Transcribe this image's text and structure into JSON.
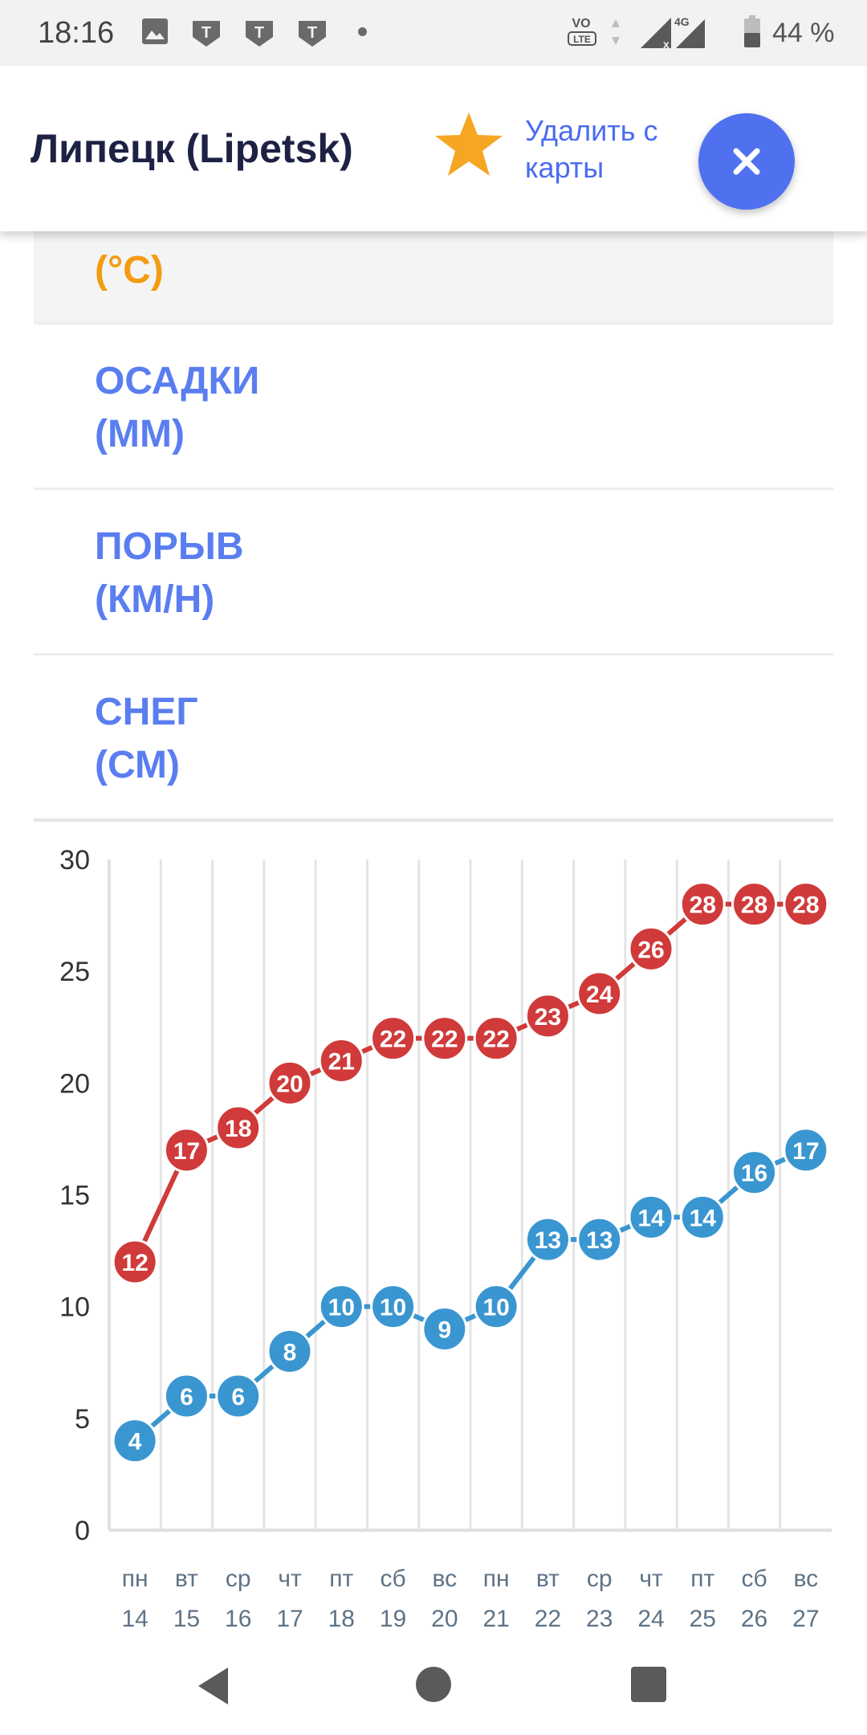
{
  "status_bar": {
    "time": "18:16",
    "notification_icons": [
      "image-icon",
      "t-app-icon",
      "t-app-icon",
      "t-app-icon"
    ],
    "network": "4G",
    "battery": "44 %"
  },
  "header": {
    "title": "Липецк (Lipetsk)",
    "remove_label": "Удалить с карты",
    "star_color": "#f5a623",
    "accent": "#4f71f0"
  },
  "rows": [
    {
      "id": "temp",
      "label": "(°C)"
    },
    {
      "id": "precip",
      "label_line1": "ОСАДКИ",
      "label_line2": "(ММ)"
    },
    {
      "id": "gust",
      "label_line1": "ПОРЫВ",
      "label_line2": "(КМ/Н)"
    },
    {
      "id": "snow",
      "label_line1": "СНЕГ",
      "label_line2": "(СМ)"
    }
  ],
  "chart_data": {
    "type": "line",
    "ylim": [
      0,
      30
    ],
    "yticks": [
      0,
      5,
      10,
      15,
      20,
      25,
      30
    ],
    "categories": [
      {
        "day": "пн",
        "date": "14"
      },
      {
        "day": "вт",
        "date": "15"
      },
      {
        "day": "ср",
        "date": "16"
      },
      {
        "day": "чт",
        "date": "17"
      },
      {
        "day": "пт",
        "date": "18"
      },
      {
        "day": "сб",
        "date": "19"
      },
      {
        "day": "вс",
        "date": "20"
      },
      {
        "day": "пн",
        "date": "21"
      },
      {
        "day": "вт",
        "date": "22"
      },
      {
        "day": "ср",
        "date": "23"
      },
      {
        "day": "чт",
        "date": "24"
      },
      {
        "day": "пт",
        "date": "25"
      },
      {
        "day": "сб",
        "date": "26"
      },
      {
        "day": "вс",
        "date": "27"
      }
    ],
    "series": [
      {
        "color": "#d03a3a",
        "values": [
          12,
          17,
          18,
          20,
          21,
          22,
          22,
          22,
          23,
          24,
          26,
          28,
          28,
          28
        ]
      },
      {
        "color": "#3a96d0",
        "values": [
          4,
          6,
          6,
          8,
          10,
          10,
          9,
          10,
          13,
          13,
          14,
          14,
          16,
          17
        ]
      }
    ],
    "grid": true
  }
}
